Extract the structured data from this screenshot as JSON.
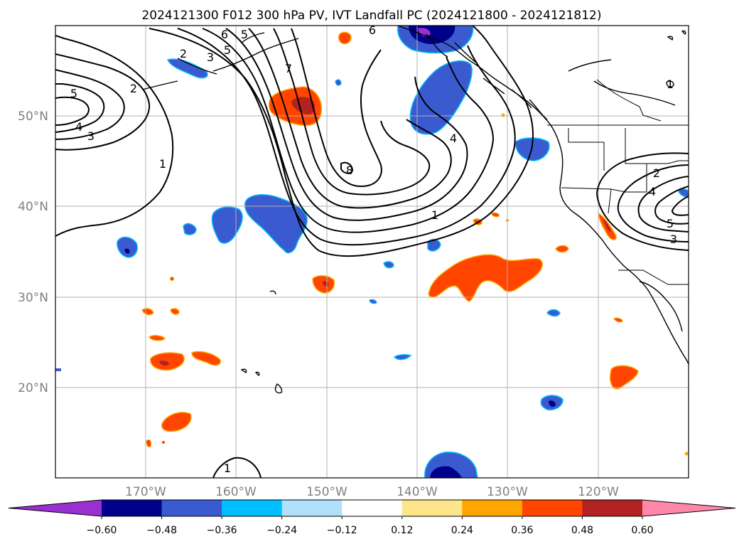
{
  "title": "2024121300 F012 300 hPa PV, IVT Landfall PC (2024121800 - 2024121812)",
  "lat_labels": [
    "50°N",
    "40°N",
    "30°N",
    "20°N"
  ],
  "lon_labels": [
    "170°W",
    "160°W",
    "150°W",
    "140°W",
    "130°W",
    "120°W"
  ],
  "colorbar": {
    "ticks": [
      "−0.60",
      "−0.48",
      "−0.36",
      "−0.24",
      "−0.12",
      "0.12",
      "0.24",
      "0.36",
      "0.48",
      "0.60"
    ],
    "colors": [
      "#9b30d0",
      "#00008b",
      "#3a5bd0",
      "#00bfff",
      "#b0e0fa",
      "#ffffff",
      "#fde68a",
      "#ffa500",
      "#ff4500",
      "#b22222",
      "#ff88aa"
    ]
  },
  "contour_labels": [
    "2",
    "3",
    "5",
    "4",
    "3",
    "2",
    "5",
    "6",
    "5",
    "7",
    "6",
    "4",
    "8",
    "1",
    "1",
    "2",
    "4",
    "5",
    "3",
    "1",
    "1"
  ]
}
